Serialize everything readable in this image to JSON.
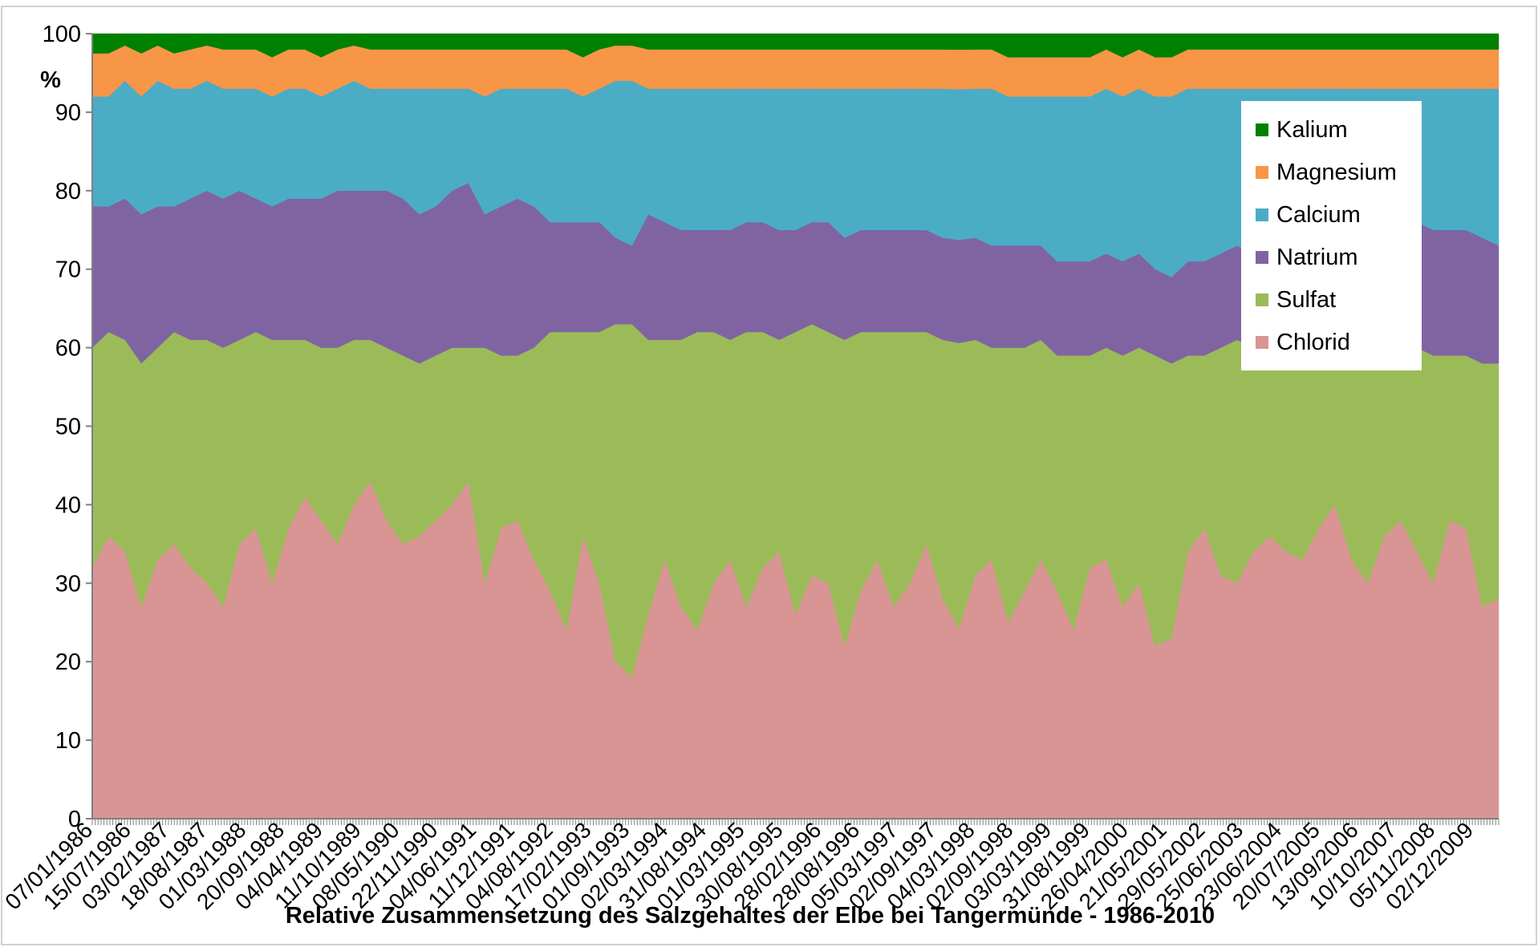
{
  "chart_data": {
    "type": "area",
    "stacked": "percent",
    "title": "Relative Zusammensetzung des Salzgehaltes der Elbe bei Tangermünde - 1986-2010",
    "ylabel": "%",
    "ylim": [
      0,
      100
    ],
    "yticks": [
      "0",
      "10",
      "20",
      "30",
      "40",
      "50",
      "60",
      "70",
      "80",
      "90",
      "100"
    ],
    "x_tick_labels": [
      "07/01/1986",
      "15/07/1986",
      "03/02/1987",
      "18/08/1987",
      "01/03/1988",
      "20/09/1988",
      "04/04/1989",
      "11/10/1989",
      "08/05/1990",
      "22/11/1990",
      "04/06/1991",
      "11/12/1991",
      "04/08/1992",
      "17/02/1993",
      "01/09/1993",
      "02/03/1994",
      "31/08/1994",
      "01/03/1995",
      "30/08/1995",
      "28/02/1996",
      "28/08/1996",
      "05/03/1997",
      "02/09/1997",
      "04/03/1998",
      "02/09/1998",
      "03/03/1999",
      "31/08/1999",
      "26/04/2000",
      "21/05/2001",
      "29/05/2002",
      "25/06/2003",
      "23/06/2004",
      "20/07/2005",
      "13/09/2006",
      "10/10/2007",
      "05/11/2008",
      "02/12/2009"
    ],
    "legend_position": "right",
    "grid": false,
    "series": [
      {
        "name": "Chlorid",
        "color": "#d99594",
        "values": [
          32,
          36,
          34,
          27,
          33,
          35,
          32,
          30,
          27,
          35,
          37,
          30,
          37,
          41,
          38,
          35,
          40,
          43,
          38,
          35,
          36,
          38,
          40,
          43,
          30,
          37,
          38,
          33,
          29,
          24,
          36,
          30,
          20,
          18,
          26,
          33,
          27,
          24,
          30,
          33,
          27,
          32,
          34,
          26,
          31,
          30,
          22,
          29,
          33,
          27,
          30,
          35,
          28,
          24,
          31,
          33,
          25,
          29,
          33,
          29,
          24,
          32,
          33,
          27,
          30,
          22,
          23,
          34,
          37,
          31,
          30,
          34,
          36,
          34,
          33,
          37,
          40,
          33,
          30,
          36,
          38,
          34,
          30,
          38,
          37,
          27,
          28
        ]
      },
      {
        "name": "Sulfat",
        "color": "#9bbb59",
        "values": [
          28,
          26,
          27,
          31,
          27,
          27,
          29,
          31,
          33,
          26,
          25,
          31,
          24,
          20,
          22,
          25,
          21,
          18,
          22,
          24,
          22,
          21,
          20,
          17,
          30,
          22,
          21,
          27,
          33,
          38,
          26,
          32,
          43,
          45,
          35,
          28,
          34,
          38,
          32,
          28,
          35,
          30,
          27,
          36,
          32,
          32,
          39,
          33,
          29,
          35,
          32,
          27,
          33,
          36,
          30,
          27,
          35,
          31,
          28,
          30,
          35,
          27,
          27,
          32,
          30,
          37,
          35,
          25,
          22,
          29,
          31,
          26,
          24,
          27,
          28,
          24,
          21,
          28,
          31,
          24,
          22,
          26,
          29,
          21,
          22,
          31,
          30
        ]
      },
      {
        "name": "Natrium",
        "color": "#8064a2",
        "values": [
          18,
          16,
          18,
          19,
          18,
          16,
          18,
          19,
          19,
          19,
          17,
          17,
          18,
          18,
          19,
          20,
          19,
          19,
          20,
          20,
          19,
          19,
          20,
          21,
          17,
          19,
          20,
          18,
          14,
          14,
          14,
          14,
          11,
          10,
          16,
          15,
          14,
          13,
          13,
          14,
          14,
          14,
          14,
          13,
          13,
          14,
          13,
          13,
          13,
          13,
          13,
          13,
          13,
          13,
          13,
          13,
          13,
          13,
          12,
          12,
          12,
          12,
          12,
          12,
          12,
          11,
          11,
          12,
          12,
          12,
          12,
          12,
          12,
          12,
          12,
          12,
          12,
          13,
          14,
          15,
          16,
          16,
          16,
          16,
          16,
          16,
          15
        ]
      },
      {
        "name": "Calcium",
        "color": "#4bacc6",
        "values": [
          14,
          14,
          15,
          15,
          16,
          15,
          14,
          14,
          14,
          13,
          14,
          14,
          14,
          14,
          13,
          13,
          14,
          13,
          13,
          14,
          16,
          15,
          13,
          12,
          15,
          15,
          14,
          15,
          17,
          17,
          16,
          17,
          20,
          21,
          16,
          17,
          18,
          18,
          18,
          18,
          17,
          17,
          18,
          18,
          17,
          17,
          19,
          18,
          18,
          18,
          18,
          18,
          19,
          19,
          19,
          20,
          19,
          19,
          19,
          21,
          21,
          21,
          21,
          21,
          21,
          22,
          23,
          22,
          22,
          21,
          20,
          21,
          21,
          20,
          20,
          20,
          20,
          19,
          18,
          18,
          17,
          17,
          18,
          18,
          18,
          19,
          20
        ]
      },
      {
        "name": "Magnesium",
        "color": "#f79646",
        "values": [
          5.5,
          5.5,
          4.5,
          5.5,
          4.5,
          4.5,
          5,
          4.5,
          5,
          5,
          5,
          5,
          5,
          5,
          5,
          5,
          4.5,
          5,
          5,
          5,
          5,
          5,
          5,
          5,
          6,
          5,
          5,
          5,
          5,
          5,
          5,
          5,
          4.5,
          4.5,
          5,
          5,
          5,
          5,
          5,
          5,
          5,
          5,
          5,
          5,
          5,
          5,
          5,
          5,
          5,
          5,
          5,
          5,
          5,
          5,
          5,
          5,
          5,
          5,
          5,
          5,
          5,
          5,
          5,
          5,
          5,
          5,
          5,
          5,
          5,
          5,
          5,
          5,
          5,
          5,
          5,
          5,
          5,
          5,
          5,
          5,
          5,
          5,
          5,
          5,
          5,
          5,
          5
        ]
      },
      {
        "name": "Kalium",
        "color": "#008000",
        "values": [
          2.5,
          2.5,
          1.5,
          2.5,
          1.5,
          2.5,
          2,
          1.5,
          2,
          2,
          2,
          3,
          2,
          2,
          3,
          2,
          1.5,
          2,
          2,
          2,
          2,
          2,
          2,
          2,
          2,
          2,
          2,
          2,
          2,
          2,
          3,
          2,
          1.5,
          1.5,
          2,
          2,
          2,
          2,
          2,
          2,
          2,
          2,
          2,
          2,
          2,
          2,
          2,
          2,
          2,
          2,
          2,
          2,
          2,
          2,
          2,
          2,
          3,
          3,
          3,
          3,
          3,
          3,
          2,
          3,
          2,
          3,
          3,
          2,
          2,
          2,
          2,
          2,
          2,
          2,
          2,
          2,
          2,
          2,
          2,
          2,
          2,
          2,
          2,
          2,
          2,
          2,
          2
        ]
      }
    ]
  },
  "legend_order": [
    "Kalium",
    "Magnesium",
    "Calcium",
    "Natrium",
    "Sulfat",
    "Chlorid"
  ]
}
